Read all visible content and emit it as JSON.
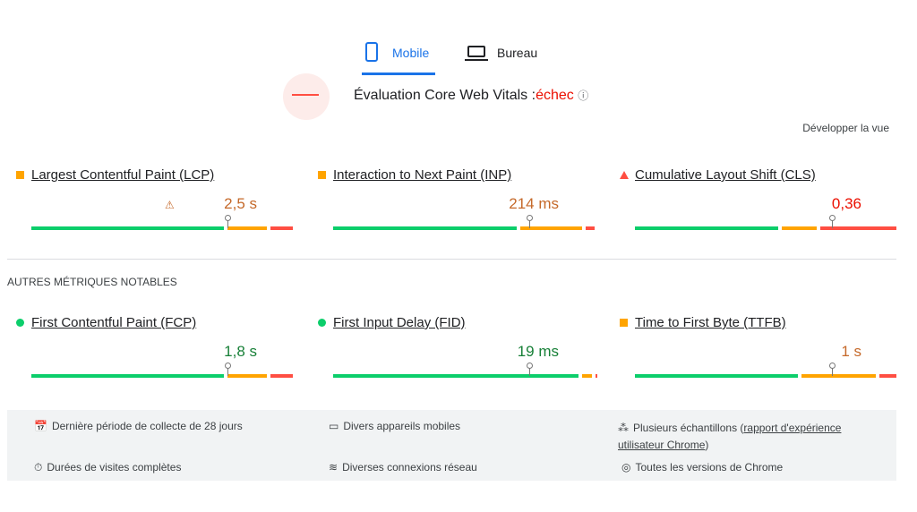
{
  "tabs": [
    "Mobile",
    "Bureau"
  ],
  "assessment": {
    "label": "Évaluation Core Web Vitals :",
    "status": "échec"
  },
  "expand": "Développer la vue",
  "core_metrics": [
    {
      "name": "Largest Contentful Paint (LCP)",
      "value": "2,5 s"
    },
    {
      "name": "Interaction to Next Paint (INP)",
      "value": "214 ms"
    },
    {
      "name": "Cumulative Layout Shift (CLS)",
      "value": "0,36"
    }
  ],
  "other_title": "AUTRES MÉTRIQUES NOTABLES",
  "other_metrics": [
    {
      "name": "First Contentful Paint (FCP)",
      "value": "1,8 s"
    },
    {
      "name": "First Input Delay (FID)",
      "value": "19 ms"
    },
    {
      "name": "Time to First Byte (TTFB)",
      "value": "1 s"
    }
  ],
  "footer": [
    {
      "text": "Dernière période de collecte de 28 jours"
    },
    {
      "text": "Divers appareils mobiles"
    },
    {
      "prefix": "Plusieurs échantillons (",
      "link": "rapport d'expérience utilisateur Chrome",
      "suffix": ")"
    },
    {
      "text": "Durées de visites complètes"
    },
    {
      "text": "Diverses connexions réseau"
    },
    {
      "text": "Toutes les versions de Chrome"
    }
  ]
}
